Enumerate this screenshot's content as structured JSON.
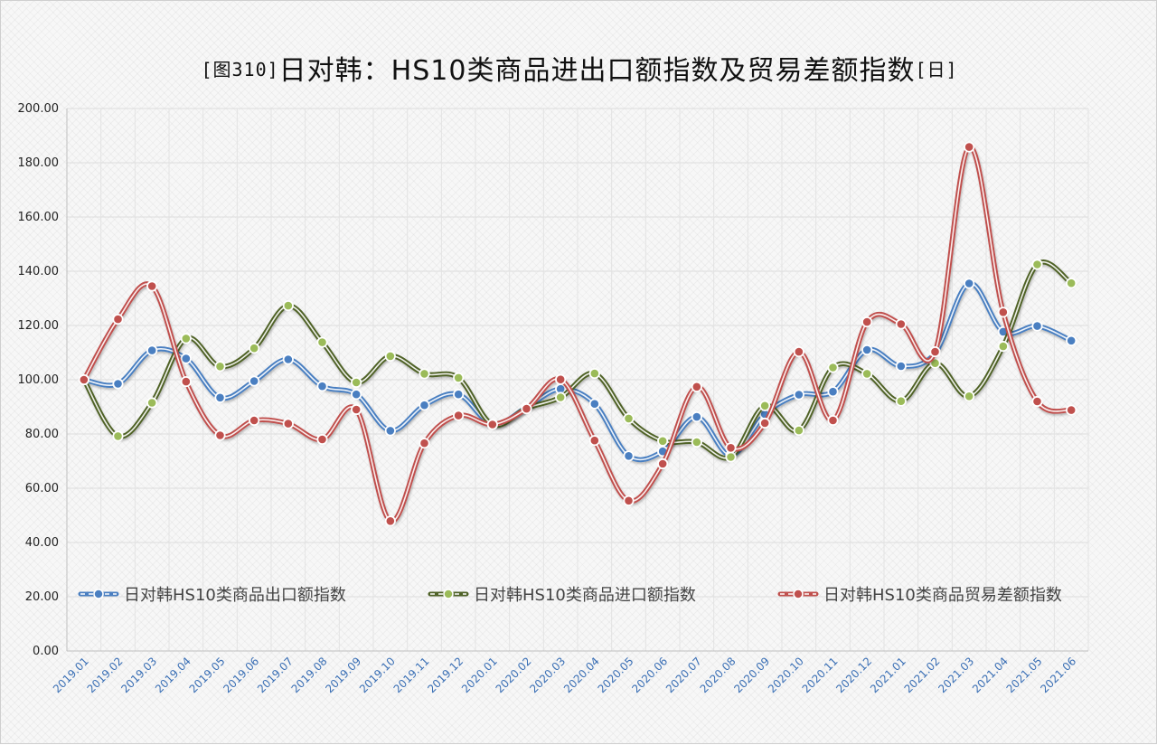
{
  "title": {
    "prefix": "[图310]",
    "main": "日对韩：HS10类商品进出口额指数及贸易差额指数",
    "suffix": "[日]"
  },
  "chart_data": {
    "type": "line",
    "smooth": true,
    "ylim": [
      0,
      200
    ],
    "ytick_step": 20,
    "ytick_labels": [
      "0.00",
      "20.00",
      "40.00",
      "60.00",
      "80.00",
      "100.00",
      "120.00",
      "140.00",
      "160.00",
      "180.00",
      "200.00"
    ],
    "grid": true,
    "legend_position": "bottom-inside",
    "categories": [
      "2019.01",
      "2019.02",
      "2019.03",
      "2019.04",
      "2019.05",
      "2019.06",
      "2019.07",
      "2019.08",
      "2019.09",
      "2019.10",
      "2019.11",
      "2019.12",
      "2020.01",
      "2020.02",
      "2020.03",
      "2020.04",
      "2020.05",
      "2020.06",
      "2020.07",
      "2020.08",
      "2020.09",
      "2020.10",
      "2020.11",
      "2020.12",
      "2021.01",
      "2021.02",
      "2021.03",
      "2021.04",
      "2021.05",
      "2021.06"
    ],
    "series": [
      {
        "name": "日对韩HS10类商品出口额指数",
        "color": "#4a7fc1",
        "values": [
          100.0,
          98.5,
          110.8,
          107.8,
          93.4,
          99.5,
          107.5,
          97.6,
          94.6,
          81.2,
          90.6,
          94.6,
          83.5,
          89.8,
          96.6,
          91.1,
          71.9,
          73.6,
          86.3,
          72.1,
          87.3,
          94.5,
          95.6,
          111.0,
          105.0,
          109.8,
          135.5,
          117.7,
          119.8,
          114.4
        ]
      },
      {
        "name": "日对韩HS10类商品进口额指数",
        "color": "#9bbb59",
        "line_color": "#4f6228",
        "values": [
          100.0,
          79.2,
          91.5,
          115.2,
          104.9,
          111.6,
          127.3,
          113.8,
          99.0,
          108.7,
          102.2,
          100.7,
          83.5,
          89.5,
          93.5,
          102.3,
          85.7,
          77.4,
          77.0,
          71.5,
          90.4,
          81.3,
          104.5,
          102.2,
          92.1,
          106.1,
          93.9,
          112.3,
          142.5,
          135.6
        ]
      },
      {
        "name": "日对韩HS10类商品贸易差额指数",
        "color": "#c0504d",
        "values": [
          100.0,
          122.3,
          134.5,
          99.3,
          79.5,
          85.0,
          83.8,
          78.0,
          89.0,
          47.9,
          76.6,
          86.8,
          83.5,
          89.3,
          100.1,
          77.6,
          55.4,
          69.0,
          97.4,
          74.9,
          84.0,
          110.3,
          85.0,
          121.3,
          120.5,
          110.3,
          185.8,
          124.9,
          92.0,
          88.8
        ]
      }
    ]
  }
}
